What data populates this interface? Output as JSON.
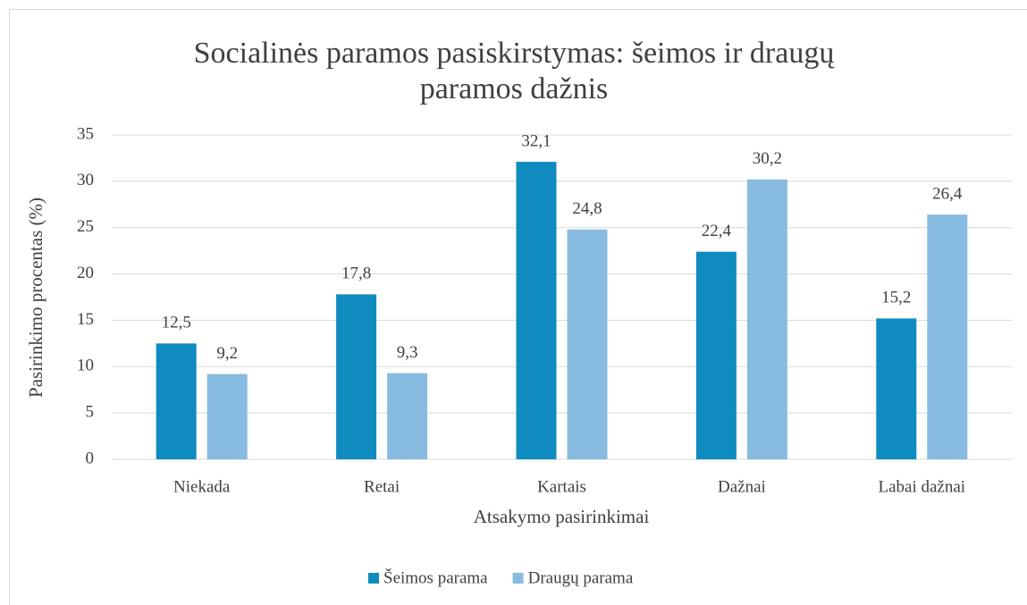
{
  "chart_data": {
    "type": "bar",
    "title": "Socialinės paramos pasiskirstymas: šeimos ir draugų paramos dažnis",
    "x_label": "Atsakymo pasirinkimai",
    "y_label": "Pasirinkimo procentas (%)",
    "categories": [
      "Niekada",
      "Retai",
      "Kartais",
      "Dažnai",
      "Labai dažnai"
    ],
    "series": [
      {
        "name": "Šeimos parama",
        "color": "#0f8bc0",
        "values": [
          12.5,
          17.8,
          32.1,
          22.4,
          15.2
        ],
        "value_labels": [
          "12,5",
          "17,8",
          "32,1",
          "22,4",
          "15,2"
        ]
      },
      {
        "name": "Draugų parama",
        "color": "#88bbe0",
        "values": [
          9.2,
          9.3,
          24.8,
          30.2,
          26.4
        ],
        "value_labels": [
          "9,2",
          "9,3",
          "24,8",
          "30,2",
          "26,4"
        ]
      }
    ],
    "ylim": [
      0,
      35
    ],
    "yticks": [
      0,
      5,
      10,
      15,
      20,
      25,
      30,
      35
    ],
    "grid": true,
    "legend": "bottom"
  }
}
